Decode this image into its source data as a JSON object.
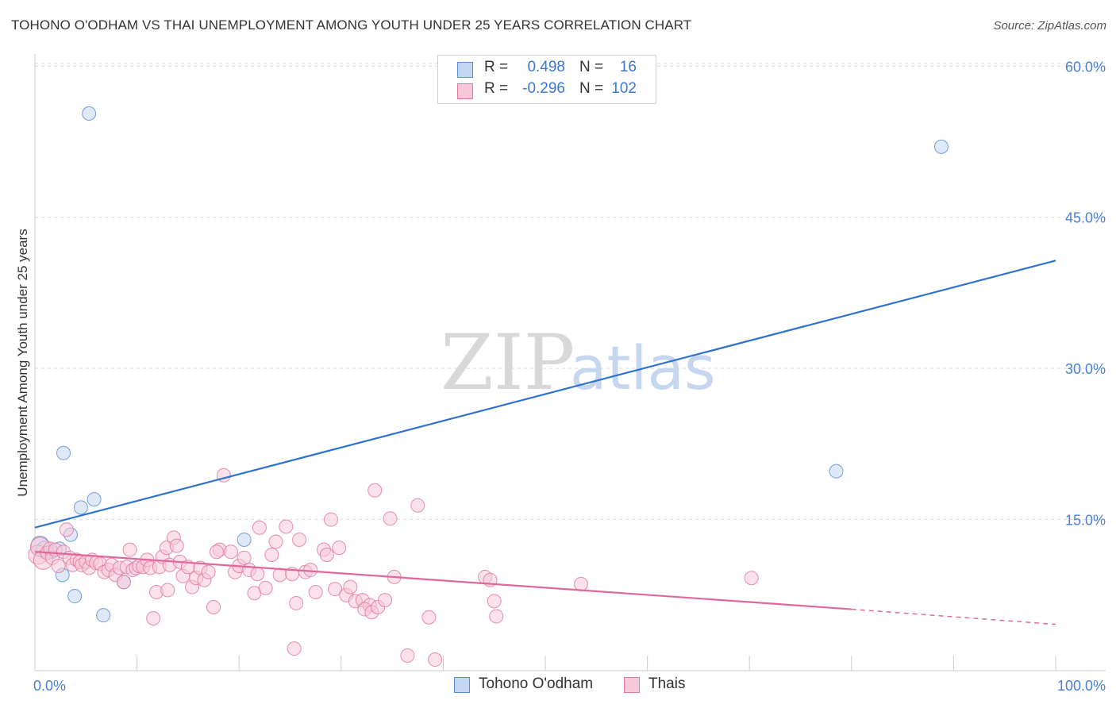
{
  "header": {
    "title": "TOHONO O'ODHAM VS THAI UNEMPLOYMENT AMONG YOUTH UNDER 25 YEARS CORRELATION CHART",
    "source": "Source: ZipAtlas.com"
  },
  "watermark": {
    "part1": "ZIP",
    "part2": "atlas"
  },
  "legend": {
    "r_label": "R =",
    "n_label": "N =",
    "series": [
      {
        "name": "Tohono O'odham",
        "r": "0.498",
        "n": "16",
        "color": "#5b8ed6"
      },
      {
        "name": "Thais",
        "r": "-0.296",
        "n": "102",
        "color": "#e07aa0"
      }
    ]
  },
  "chart_data": {
    "type": "scatter",
    "title": "TOHONO O'ODHAM VS THAI UNEMPLOYMENT AMONG YOUTH UNDER 25 YEARS CORRELATION CHART",
    "xlabel": "",
    "ylabel": "Unemployment Among Youth under 25 years",
    "xlim": [
      0,
      100
    ],
    "ylim": [
      0,
      60
    ],
    "x_tick_labels": [
      "0.0%",
      "100.0%"
    ],
    "y_ticks": [
      15,
      30,
      45,
      60
    ],
    "y_tick_labels": [
      "15.0%",
      "30.0%",
      "45.0%",
      "60.0%"
    ],
    "grid": true,
    "series": [
      {
        "name": "Tohono O'odham",
        "color": "#5b8ed6",
        "fill": "#c4d7f2",
        "points": [
          [
            0.5,
            12.5
          ],
          [
            1.0,
            12.0
          ],
          [
            1.6,
            11.8
          ],
          [
            2.4,
            12.1
          ],
          [
            2.8,
            21.6
          ],
          [
            2.7,
            9.5
          ],
          [
            3.5,
            13.5
          ],
          [
            3.9,
            7.4
          ],
          [
            4.5,
            16.2
          ],
          [
            5.3,
            55.3
          ],
          [
            5.8,
            17.0
          ],
          [
            6.7,
            5.5
          ],
          [
            8.7,
            8.8
          ],
          [
            20.5,
            13.0
          ],
          [
            78.5,
            19.8
          ],
          [
            88.8,
            52.0
          ]
        ],
        "trend": {
          "x": [
            0,
            100
          ],
          "y": [
            14.2,
            40.7
          ]
        }
      },
      {
        "name": "Thais",
        "color": "#e07aa0",
        "fill": "#f6c8d8",
        "points": [
          [
            0.3,
            11.5
          ],
          [
            0.5,
            12.3
          ],
          [
            0.8,
            11.0
          ],
          [
            1.2,
            11.7
          ],
          [
            1.5,
            12.1
          ],
          [
            1.7,
            11.2
          ],
          [
            2.0,
            12.0
          ],
          [
            2.3,
            10.4
          ],
          [
            2.8,
            11.8
          ],
          [
            3.1,
            14.0
          ],
          [
            3.4,
            11.2
          ],
          [
            3.7,
            10.5
          ],
          [
            4.1,
            11.0
          ],
          [
            4.4,
            10.8
          ],
          [
            4.6,
            10.5
          ],
          [
            5.0,
            10.8
          ],
          [
            5.3,
            10.2
          ],
          [
            5.6,
            11.0
          ],
          [
            6.0,
            10.7
          ],
          [
            6.4,
            10.6
          ],
          [
            6.8,
            9.8
          ],
          [
            7.2,
            10.0
          ],
          [
            7.5,
            10.5
          ],
          [
            7.9,
            9.5
          ],
          [
            8.3,
            10.2
          ],
          [
            8.7,
            8.8
          ],
          [
            9.0,
            10.3
          ],
          [
            9.3,
            12.0
          ],
          [
            9.6,
            10.0
          ],
          [
            9.9,
            10.2
          ],
          [
            10.2,
            10.4
          ],
          [
            10.6,
            10.3
          ],
          [
            11.0,
            11.0
          ],
          [
            11.3,
            10.2
          ],
          [
            11.6,
            5.2
          ],
          [
            11.9,
            7.8
          ],
          [
            12.2,
            10.3
          ],
          [
            12.5,
            11.3
          ],
          [
            12.9,
            12.2
          ],
          [
            13.2,
            10.5
          ],
          [
            13.6,
            13.2
          ],
          [
            13.9,
            12.4
          ],
          [
            14.2,
            10.8
          ],
          [
            14.5,
            9.4
          ],
          [
            15.0,
            10.3
          ],
          [
            15.4,
            8.3
          ],
          [
            15.8,
            9.2
          ],
          [
            16.2,
            10.2
          ],
          [
            16.6,
            9.0
          ],
          [
            17.0,
            9.8
          ],
          [
            17.5,
            6.3
          ],
          [
            18.1,
            12.0
          ],
          [
            18.5,
            19.4
          ],
          [
            19.2,
            11.8
          ],
          [
            19.6,
            9.8
          ],
          [
            20.0,
            10.4
          ],
          [
            20.5,
            11.2
          ],
          [
            21.0,
            10.0
          ],
          [
            21.5,
            7.7
          ],
          [
            22.0,
            14.2
          ],
          [
            22.6,
            8.2
          ],
          [
            23.2,
            11.5
          ],
          [
            23.6,
            12.8
          ],
          [
            24.0,
            9.5
          ],
          [
            24.6,
            14.3
          ],
          [
            25.2,
            9.6
          ],
          [
            25.6,
            6.7
          ],
          [
            25.4,
            2.2
          ],
          [
            25.9,
            13.0
          ],
          [
            26.5,
            9.8
          ],
          [
            27.0,
            10.0
          ],
          [
            27.5,
            7.8
          ],
          [
            28.3,
            12.0
          ],
          [
            28.6,
            11.5
          ],
          [
            29.0,
            15.0
          ],
          [
            29.4,
            8.1
          ],
          [
            29.8,
            12.2
          ],
          [
            30.5,
            7.5
          ],
          [
            30.9,
            8.3
          ],
          [
            31.4,
            6.9
          ],
          [
            32.1,
            7.0
          ],
          [
            32.8,
            6.5
          ],
          [
            32.3,
            6.1
          ],
          [
            33.0,
            5.8
          ],
          [
            33.6,
            6.3
          ],
          [
            34.3,
            7.0
          ],
          [
            34.8,
            15.1
          ],
          [
            35.2,
            9.3
          ],
          [
            36.5,
            1.5
          ],
          [
            37.5,
            16.4
          ],
          [
            38.6,
            5.3
          ],
          [
            39.2,
            1.1
          ],
          [
            44.1,
            9.3
          ],
          [
            44.6,
            9.0
          ],
          [
            45.0,
            6.9
          ],
          [
            45.2,
            5.4
          ],
          [
            53.5,
            8.6
          ],
          [
            70.2,
            9.2
          ],
          [
            17.8,
            11.8
          ],
          [
            33.3,
            17.9
          ],
          [
            13.0,
            8.0
          ],
          [
            21.8,
            9.6
          ]
        ],
        "trend": {
          "x": [
            0,
            80
          ],
          "y": [
            11.8,
            6.1
          ]
        },
        "trend_dashed": {
          "x": [
            80,
            100
          ],
          "y": [
            6.1,
            4.6
          ]
        }
      }
    ]
  }
}
